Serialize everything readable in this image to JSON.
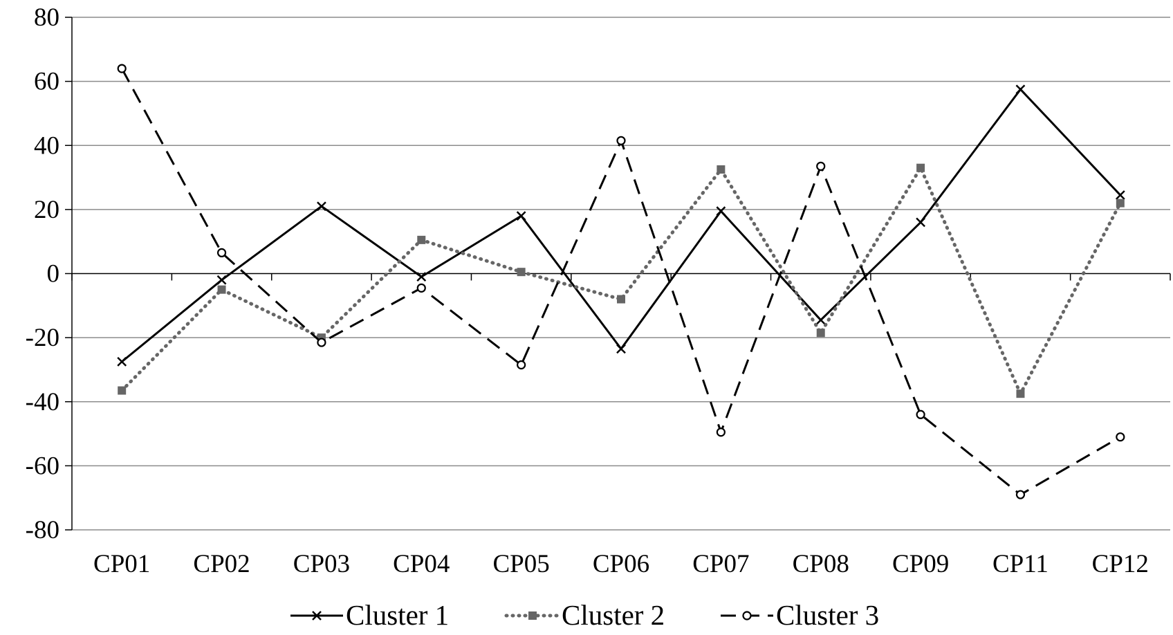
{
  "chart_data": {
    "type": "line",
    "title": "",
    "xlabel": "",
    "ylabel": "",
    "categories": [
      "CP01",
      "CP02",
      "CP03",
      "CP04",
      "CP05",
      "CP06",
      "CP07",
      "CP08",
      "CP09",
      "CP11",
      "CP12"
    ],
    "ylim": [
      -80,
      80
    ],
    "yticks": [
      80,
      60,
      40,
      20,
      0,
      -20,
      -40,
      -60,
      -80
    ],
    "grid": true,
    "legend_position": "bottom",
    "series": [
      {
        "name": "Cluster 1",
        "line_style": "solid",
        "marker": "x",
        "color": "#000000",
        "values": [
          -27.5,
          -2,
          21,
          -1,
          18,
          -23.5,
          19.5,
          -14.5,
          16,
          57.5,
          24.5
        ]
      },
      {
        "name": "Cluster 2",
        "line_style": "dotted",
        "marker": "square",
        "color": "#666666",
        "values": [
          -36.5,
          -5,
          -20,
          10.5,
          0.5,
          -8,
          32.5,
          -18.5,
          33,
          -37.5,
          22
        ]
      },
      {
        "name": "Cluster 3",
        "line_style": "dashed",
        "marker": "open-circle",
        "color": "#000000",
        "values": [
          64,
          6.5,
          -21.5,
          -4.5,
          -28.5,
          41.5,
          -49.5,
          33.5,
          -44,
          -69,
          -51
        ]
      }
    ]
  }
}
